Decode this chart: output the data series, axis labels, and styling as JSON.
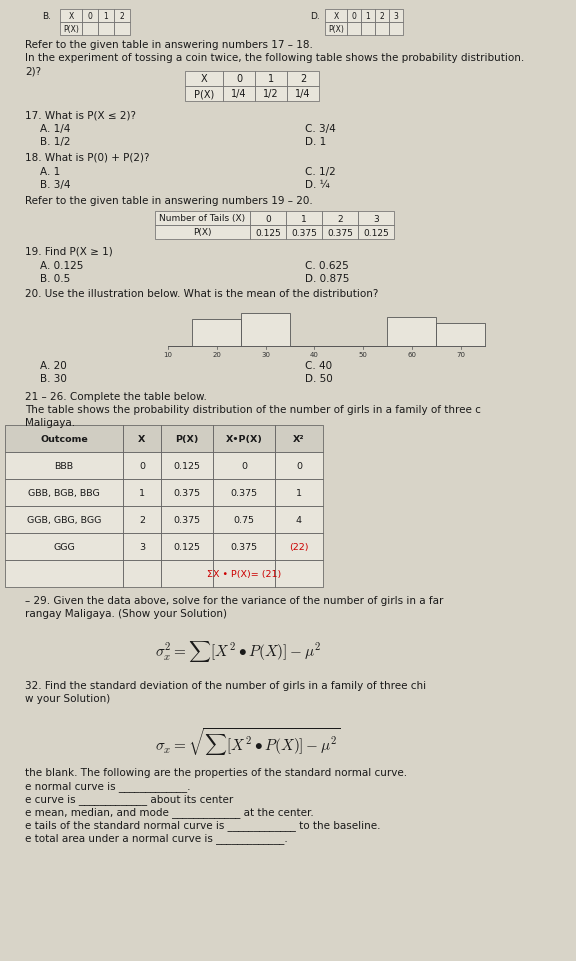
{
  "bg_color": "#d8d4c8",
  "paper_color": "#e8e5db",
  "text_color": "#1a1a1a",
  "red_color": "#cc0000",
  "body_fontsize": 7.5,
  "small_fontsize": 6.5,
  "q17_18_intro": "Refer to the given table in answering numbers 17 – 18.",
  "q17_18_sub": "In the experiment of tossing a coin twice, the following table shows the probability distribution.",
  "q17_18_sub2": "2)?",
  "q17": "17. What is P(X ≤ 2)?",
  "q17_A": "A. 1/4",
  "q17_B": "B. 1/2",
  "q17_C": "C. 3/4",
  "q17_D": "D. 1",
  "q18": "18. What is P(0) + P(2)?",
  "q18_A": "A. 1",
  "q18_B": "B. 3/4",
  "q18_C": "C. 1/2",
  "q18_D": "D. ¼",
  "q19_20_intro": "Refer to the given table in answering numbers 19 – 20.",
  "q19": "19. Find P(X ≥ 1)",
  "q19_A": "A. 0.125",
  "q19_B": "B. 0.5",
  "q19_C": "C. 0.625",
  "q19_D": "D. 0.875",
  "q20": "20. Use the illustration below. What is the mean of the distribution?",
  "q20_A": "A. 20",
  "q20_B": "B. 30",
  "q20_C": "C. 40",
  "q20_D": "D. 50",
  "q21_26_intro": "21 – 26. Complete the table below.",
  "q21_26_sub": "The table shows the probability distribution of the number of girls in a family of three c",
  "q21_26_sub2": "Maligaya.",
  "q29_intro": "– 29. Given the data above, solve for the variance of the number of girls in a far",
  "q29_sub": "rangay Maligaya. (Show your Solution)",
  "q32_intro": "32. Find the standard deviation of the number of girls in a family of three chi",
  "q32_sub": "w your Solution)",
  "fill_blank_intro": "the blank. The following are the properties of the standard normal curve.",
  "fill_blank_lines": [
    "e normal curve is _____________.",
    "e curve is _____________ about its center",
    "e mean, median, and mode _____________ at the center.",
    "e tails of the standard normal curve is _____________ to the baseline.",
    "e total area under a normal curve is _____________."
  ]
}
